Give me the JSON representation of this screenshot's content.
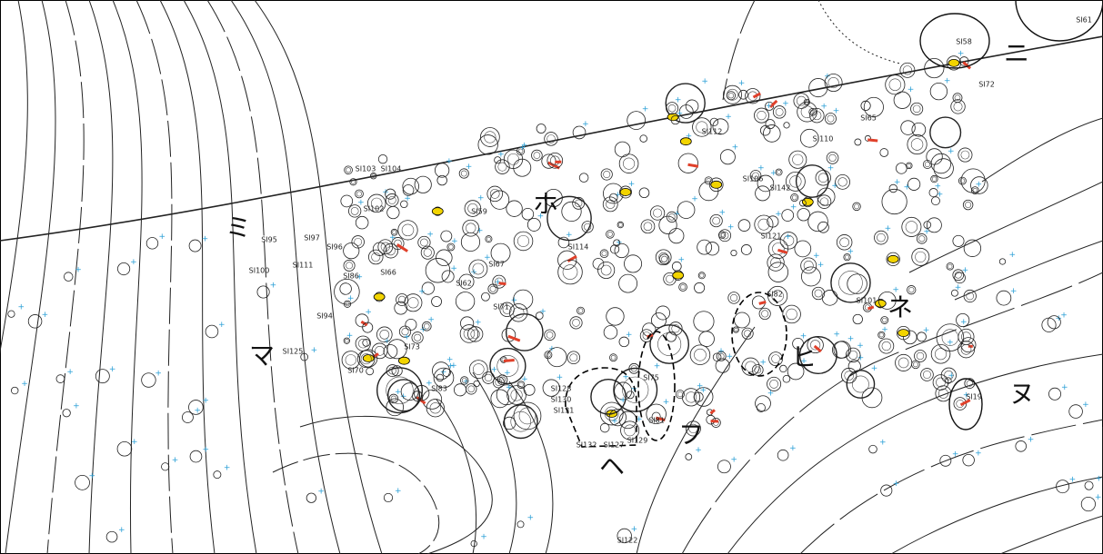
{
  "zones": [
    "ニ",
    "ミ",
    "ホ",
    "ネ",
    "マ",
    "ヒ",
    "ヌ",
    "フ",
    "ヘ"
  ],
  "features": [
    "SI61",
    "SI58",
    "SI72",
    "SI65",
    "SI110",
    "SI112",
    "SI103",
    "SI104",
    "SI102",
    "SI95",
    "SI97",
    "SI96",
    "SI100",
    "SI111",
    "SI86",
    "SI66",
    "SI94",
    "SI62",
    "SI59",
    "SI67",
    "SI71",
    "SI114",
    "SI106",
    "SI142",
    "SI121",
    "SI101",
    "SI82",
    "SI125",
    "SI70",
    "SI73",
    "SI83",
    "SI128",
    "SI130",
    "SI131",
    "SI132",
    "SI127",
    "SI129",
    "SI75",
    "SI81",
    "SI19",
    "SI122"
  ]
}
